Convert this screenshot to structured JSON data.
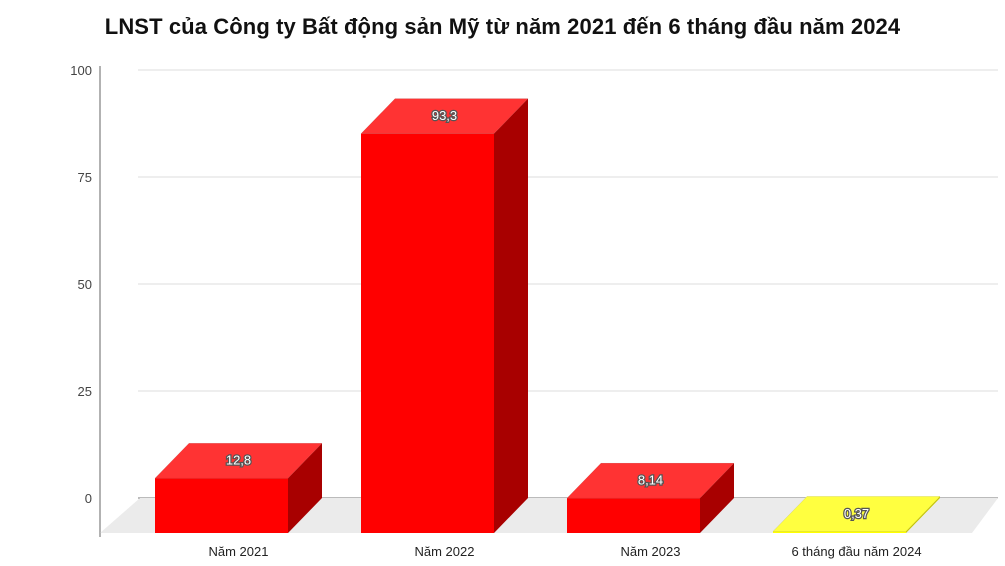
{
  "chart_data": {
    "type": "bar",
    "title": "LNST của Công ty Bất động sản Mỹ từ năm 2021 đến 6 tháng đầu năm 2024",
    "xlabel": "",
    "ylabel": "",
    "categories": [
      "Năm 2021",
      "Năm 2022",
      "Năm 2023",
      "6 tháng đầu năm 2024"
    ],
    "values": [
      12.8,
      93.3,
      8.14,
      0.37
    ],
    "value_labels": [
      "12,8",
      "93,3",
      "8,14",
      "0,37"
    ],
    "ylim": [
      0,
      100
    ],
    "yticks": [
      0,
      25,
      50,
      75,
      100
    ],
    "colors": [
      "#ff0000",
      "#ff0000",
      "#ff0000",
      "#ffff00"
    ],
    "grid": true,
    "legend": "none",
    "style": "3d"
  }
}
